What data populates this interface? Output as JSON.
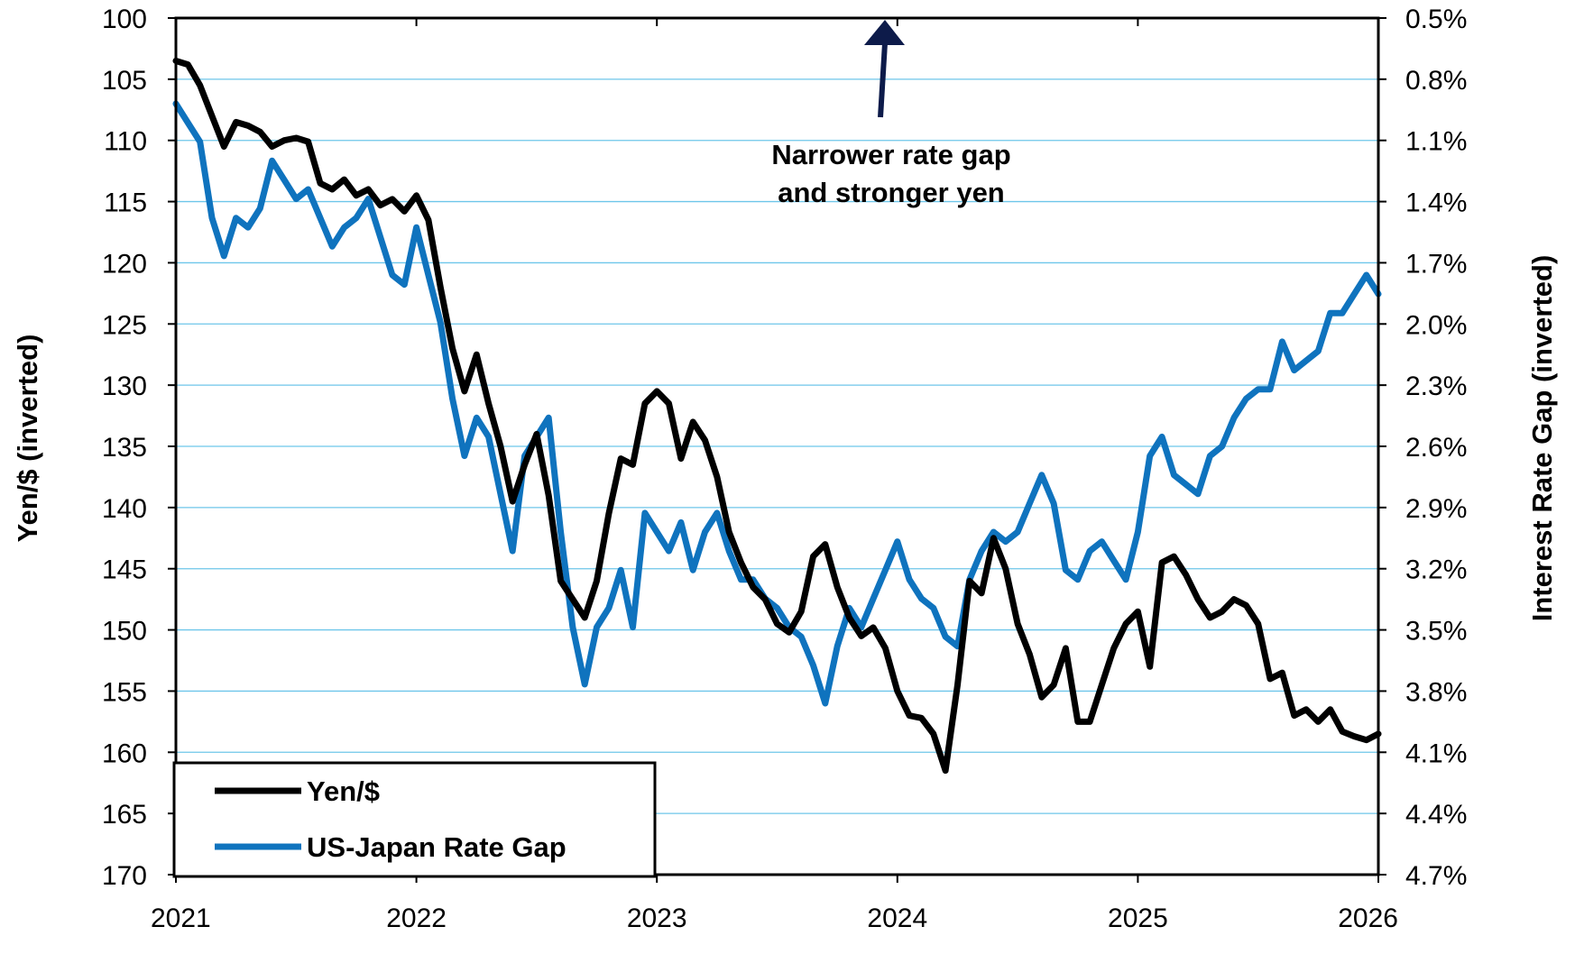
{
  "chart_data": {
    "type": "line",
    "x_range": [
      2021.0,
      2026.0
    ],
    "x_ticks": [
      "2021",
      "2022",
      "2023",
      "2024",
      "2025",
      "2026"
    ],
    "y_left": {
      "label": "Yen/$ (inverted)",
      "range": [
        100,
        170
      ],
      "inverted": true,
      "ticks": [
        "100",
        "105",
        "110",
        "115",
        "120",
        "125",
        "130",
        "135",
        "140",
        "145",
        "150",
        "155",
        "160",
        "165",
        "170"
      ]
    },
    "y_right": {
      "label": "Interest Rate Gap (inverted)",
      "range": [
        0.5,
        5.0
      ],
      "inverted": true,
      "ticks": [
        "0.5%",
        "0.8%",
        "1.1%",
        "1.4%",
        "1.7%",
        "2.0%",
        "2.3%",
        "2.6%",
        "2.9%",
        "3.2%",
        "3.5%",
        "3.8%",
        "4.1%",
        "4.4%",
        "4.7%"
      ]
    },
    "grid": "horizontal",
    "legend_placement": "bottom-left",
    "annotation": {
      "lines": [
        "Narrower rate gap",
        "and stronger yen"
      ],
      "arrow": "up"
    },
    "series": [
      {
        "name": "Yen/$",
        "axis": "left",
        "color": "#000000",
        "x": [
          2021.0,
          2021.05,
          2021.1,
          2021.15,
          2021.2,
          2021.25,
          2021.3,
          2021.35,
          2021.4,
          2021.45,
          2021.5,
          2021.55,
          2021.6,
          2021.65,
          2021.7,
          2021.75,
          2021.8,
          2021.85,
          2021.9,
          2021.95,
          2022.0,
          2022.05,
          2022.1,
          2022.15,
          2022.2,
          2022.25,
          2022.3,
          2022.35,
          2022.4,
          2022.45,
          2022.5,
          2022.55,
          2022.6,
          2022.65,
          2022.7,
          2022.75,
          2022.8,
          2022.85,
          2022.9,
          2022.95,
          2023.0,
          2023.05,
          2023.1,
          2023.15,
          2023.2,
          2023.25,
          2023.3,
          2023.35,
          2023.4,
          2023.45,
          2023.5,
          2023.55,
          2023.6,
          2023.65,
          2023.7,
          2023.75,
          2023.8,
          2023.85,
          2023.9,
          2023.95,
          2024.0,
          2024.05,
          2024.1,
          2024.15,
          2024.2,
          2024.25,
          2024.3,
          2024.35,
          2024.4,
          2024.45,
          2024.5,
          2024.55,
          2024.6,
          2024.65,
          2024.7,
          2024.75,
          2024.8,
          2024.85,
          2024.9,
          2024.95,
          2025.0,
          2025.05,
          2025.1,
          2025.15,
          2025.2,
          2025.25,
          2025.3,
          2025.35,
          2025.4,
          2025.45,
          2025.5,
          2025.55,
          2025.6,
          2025.65,
          2025.7,
          2025.75,
          2025.8,
          2025.85,
          2025.9,
          2025.95,
          2026.0
        ],
        "y": [
          103.5,
          103.8,
          105.5,
          108.0,
          110.5,
          108.5,
          108.8,
          109.3,
          110.5,
          110.0,
          109.8,
          110.1,
          113.5,
          114.0,
          113.2,
          114.5,
          114.0,
          115.3,
          114.8,
          115.8,
          114.5,
          116.5,
          122.0,
          127.0,
          130.5,
          127.5,
          131.5,
          135.0,
          139.5,
          136.5,
          134.0,
          139.0,
          146.0,
          147.5,
          149.0,
          146.0,
          140.5,
          136.0,
          136.5,
          131.5,
          130.5,
          131.5,
          136.0,
          133.0,
          134.5,
          137.5,
          142.0,
          144.5,
          146.5,
          147.5,
          149.5,
          150.2,
          148.5,
          144.0,
          143.0,
          146.5,
          149.0,
          150.5,
          149.8,
          151.5,
          155.0,
          157.0,
          157.2,
          158.5,
          161.5,
          154.5,
          146.0,
          147.0,
          142.5,
          145.0,
          149.5,
          152.0,
          155.5,
          154.5,
          151.5,
          157.5,
          157.5,
          154.5,
          151.5,
          149.5,
          148.5,
          153.0,
          144.5,
          144.0,
          145.5,
          147.5,
          149.0,
          148.5,
          147.5,
          148.0,
          149.5,
          154.0,
          153.5,
          157.0,
          156.5,
          157.5,
          156.5,
          158.3,
          158.7,
          159.0,
          158.5
        ]
      },
      {
        "name": "US-Japan Rate Gap",
        "axis": "right",
        "color": "#0f73be",
        "x": [
          2021.0,
          2021.05,
          2021.1,
          2021.15,
          2021.2,
          2021.25,
          2021.3,
          2021.35,
          2021.4,
          2021.45,
          2021.5,
          2021.55,
          2021.6,
          2021.65,
          2021.7,
          2021.75,
          2021.8,
          2021.85,
          2021.9,
          2021.95,
          2022.0,
          2022.05,
          2022.1,
          2022.15,
          2022.2,
          2022.25,
          2022.3,
          2022.35,
          2022.4,
          2022.45,
          2022.5,
          2022.55,
          2022.6,
          2022.65,
          2022.7,
          2022.75,
          2022.8,
          2022.85,
          2022.9,
          2022.95,
          2023.0,
          2023.05,
          2023.1,
          2023.15,
          2023.2,
          2023.25,
          2023.3,
          2023.35,
          2023.4,
          2023.45,
          2023.5,
          2023.55,
          2023.6,
          2023.65,
          2023.7,
          2023.75,
          2023.8,
          2023.85,
          2023.9,
          2023.95,
          2024.0,
          2024.05,
          2024.1,
          2024.15,
          2024.2,
          2024.25,
          2024.3,
          2024.35,
          2024.4,
          2024.45,
          2024.5,
          2024.55,
          2024.6,
          2024.65,
          2024.7,
          2024.75,
          2024.8,
          2024.85,
          2024.9,
          2024.95,
          2025.0,
          2025.05,
          2025.1,
          2025.15,
          2025.2,
          2025.25,
          2025.3,
          2025.35,
          2025.4,
          2025.45,
          2025.5,
          2025.55,
          2025.6,
          2025.65,
          2025.7,
          2025.75,
          2025.8,
          2025.85,
          2025.9,
          2025.95,
          2026.0
        ],
        "y": [
          0.95,
          1.05,
          1.15,
          1.55,
          1.75,
          1.55,
          1.6,
          1.5,
          1.25,
          1.35,
          1.45,
          1.4,
          1.55,
          1.7,
          1.6,
          1.55,
          1.45,
          1.65,
          1.85,
          1.9,
          1.6,
          1.85,
          2.1,
          2.5,
          2.8,
          2.6,
          2.7,
          3.0,
          3.3,
          2.8,
          2.7,
          2.6,
          3.2,
          3.7,
          4.0,
          3.7,
          3.6,
          3.4,
          3.7,
          3.1,
          3.2,
          3.3,
          3.15,
          3.4,
          3.2,
          3.1,
          3.3,
          3.45,
          3.45,
          3.55,
          3.6,
          3.7,
          3.75,
          3.9,
          4.1,
          3.8,
          3.6,
          3.7,
          3.55,
          3.4,
          3.25,
          3.45,
          3.55,
          3.6,
          3.75,
          3.8,
          3.45,
          3.3,
          3.2,
          3.25,
          3.2,
          3.05,
          2.9,
          3.05,
          3.4,
          3.45,
          3.3,
          3.25,
          3.35,
          3.45,
          3.2,
          2.8,
          2.7,
          2.9,
          2.95,
          3.0,
          2.8,
          2.75,
          2.6,
          2.5,
          2.45,
          2.45,
          2.2,
          2.35,
          2.3,
          2.25,
          2.05,
          2.05,
          1.95,
          1.85,
          1.95
        ]
      }
    ]
  }
}
